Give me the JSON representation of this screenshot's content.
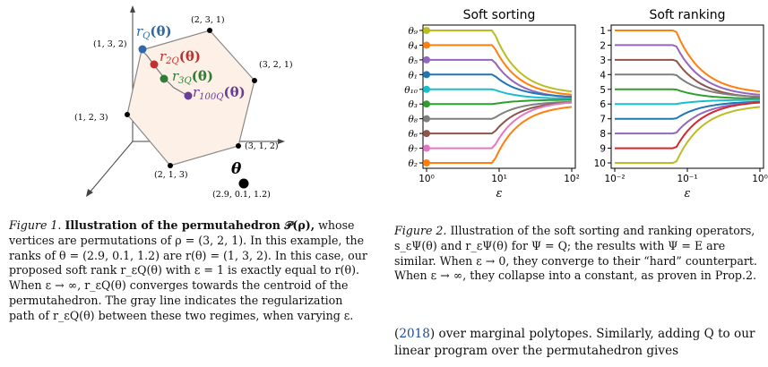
{
  "figure1": {
    "labels": {
      "v231": "(2, 3, 1)",
      "v132": "(1, 3, 2)",
      "v321": "(3, 2, 1)",
      "v123": "(1, 2, 3)",
      "v312": "(3, 1, 2)",
      "v213": "(2, 1, 3)",
      "theta_val": "(2.9, 0.1, 1.2)",
      "rQ": "r",
      "rQ_sub": "Q",
      "r2Q": "r",
      "r2Q_sub": "2Q",
      "r3Q": "r",
      "r3Q_sub": "3Q",
      "r100Q": "r",
      "r100Q_sub": "100Q",
      "theta": "θ",
      "theta_arg": "(θ)"
    },
    "colors": {
      "rQ": "#2f6aa8",
      "r2Q": "#c03030",
      "r3Q": "#2e7d32",
      "r100Q": "#6a3d9a",
      "hull": "#fdf0e6"
    }
  },
  "chart_data": [
    {
      "type": "line",
      "title": "Soft sorting",
      "xlabel": "ε",
      "xscale": "log",
      "xlim": [
        1,
        100
      ],
      "xticks": [
        "10⁰",
        "10¹",
        "10²"
      ],
      "yticks": [
        "θ₉",
        "θ₄",
        "θ₅",
        "θ₁",
        "θ₁₀",
        "θ₃",
        "θ₈",
        "θ₆",
        "θ₇",
        "θ₂"
      ],
      "series": [
        {
          "color": "#bcbd22",
          "start": 10
        },
        {
          "color": "#ff7f0e",
          "start": 9
        },
        {
          "color": "#9467bd",
          "start": 8
        },
        {
          "color": "#1f77b4",
          "start": 7
        },
        {
          "color": "#17becf",
          "start": 5.5
        },
        {
          "color": "#2ca02c",
          "start": 4.5
        },
        {
          "color": "#7f7f7f",
          "start": 3.5
        },
        {
          "color": "#8c564b",
          "start": 2.5
        },
        {
          "color": "#e377c2",
          "start": 1.7
        },
        {
          "color": "#ff7f0e",
          "start": 1
        }
      ]
    },
    {
      "type": "line",
      "title": "Soft ranking",
      "xlabel": "ε",
      "xscale": "log",
      "xlim": [
        0.01,
        1
      ],
      "xticks": [
        "10⁻²",
        "10⁻¹",
        "10⁰"
      ],
      "yticks": [
        "1",
        "2",
        "3",
        "4",
        "5",
        "6",
        "7",
        "8",
        "9",
        "10"
      ],
      "ylim": [
        1,
        10
      ],
      "series": [
        {
          "color": "#ff7f0e",
          "start": 10
        },
        {
          "color": "#9467bd",
          "start": 9
        },
        {
          "color": "#8c564b",
          "start": 8
        },
        {
          "color": "#7f7f7f",
          "start": 7
        },
        {
          "color": "#2ca02c",
          "start": 6
        },
        {
          "color": "#17becf",
          "start": 5
        },
        {
          "color": "#1f77b4",
          "start": 4
        },
        {
          "color": "#9467bd",
          "start": 3
        },
        {
          "color": "#d62728",
          "start": 2
        },
        {
          "color": "#bcbd22",
          "start": 1
        }
      ]
    }
  ],
  "captions": {
    "fig1_label": "Figure 1.",
    "fig1_bold": "Illustration of the permutahedron 𝒫(ρ),",
    "fig1_text": " whose vertices are permutations of ρ = (3, 2, 1). In this example, the ranks of θ = (2.9, 0.1, 1.2) are r(θ) = (1, 3, 2). In this case, our proposed soft rank r_εQ(θ) with ε = 1 is exactly equal to r(θ). When ε → ∞, r_εQ(θ) converges towards the centroid of the permutahedron. The gray line indicates the regularization path of r_εQ(θ) between these two regimes, when varying ε.",
    "fig2_label": "Figure 2.",
    "fig2_text": " Illustration of the soft sorting and ranking operators, s_εΨ(θ) and r_εΨ(θ) for Ψ = Q; the results with Ψ = E are similar. When ε → 0, they converge to their “hard” counterpart. When ε → ∞, they collapse into a constant, as proven in Prop.2."
  },
  "body": {
    "cite_year": "2018",
    "line1_rest": ") over marginal polytopes. Similarly, adding Q to our",
    "line2": "linear program over the permutahedron gives"
  }
}
